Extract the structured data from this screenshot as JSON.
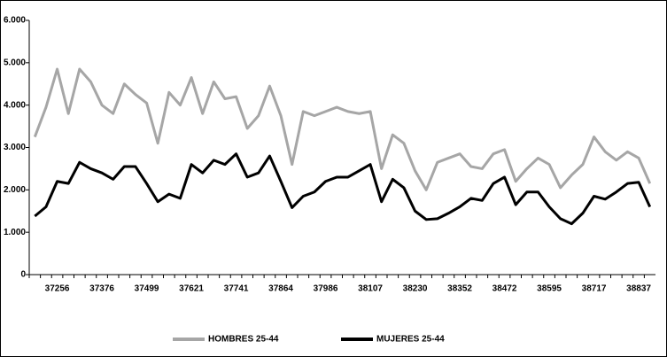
{
  "chart_data": {
    "type": "line",
    "categories": [
      null,
      null,
      37256,
      null,
      null,
      null,
      37376,
      null,
      null,
      null,
      37499,
      null,
      null,
      null,
      37621,
      null,
      null,
      null,
      37741,
      null,
      null,
      null,
      37864,
      null,
      null,
      null,
      37986,
      null,
      null,
      null,
      38107,
      null,
      null,
      null,
      38230,
      null,
      null,
      null,
      38352,
      null,
      null,
      null,
      38472,
      null,
      null,
      null,
      38595,
      null,
      null,
      null,
      38717,
      null,
      null,
      null,
      38837,
      null
    ],
    "series": [
      {
        "name": "HOMBRES 25-44",
        "color": "#a6a6a6",
        "values": [
          3250,
          3950,
          4850,
          3800,
          4850,
          4550,
          4000,
          3800,
          4500,
          4250,
          4050,
          3100,
          4300,
          4000,
          4650,
          3800,
          4550,
          4150,
          4200,
          3450,
          3750,
          4450,
          3750,
          2600,
          3850,
          3750,
          3850,
          3950,
          3850,
          3800,
          3850,
          2500,
          3300,
          3100,
          2450,
          2000,
          2650,
          2750,
          2850,
          2550,
          2500,
          2850,
          2950,
          2200,
          2500,
          2750,
          2600,
          2050,
          2350,
          2600,
          3250,
          2900,
          2700,
          2900,
          2750,
          2150
        ]
      },
      {
        "name": "MUJERES 25-44",
        "color": "#000000",
        "values": [
          1380,
          1600,
          2200,
          2150,
          2650,
          2500,
          2400,
          2250,
          2550,
          2550,
          2150,
          1720,
          1900,
          1800,
          2600,
          2400,
          2700,
          2600,
          2850,
          2300,
          2400,
          2800,
          2200,
          1580,
          1850,
          1950,
          2200,
          2300,
          2300,
          2450,
          2600,
          1720,
          2250,
          2050,
          1500,
          1300,
          1320,
          1450,
          1600,
          1800,
          1750,
          2150,
          2300,
          1650,
          1950,
          1950,
          1600,
          1320,
          1200,
          1450,
          1850,
          1780,
          1950,
          2150,
          2180,
          1600
        ]
      }
    ],
    "ylim": [
      0,
      6000
    ],
    "yticks": [
      0,
      {
        "value": 1000,
        "label": "1.000"
      },
      {
        "value": 2000,
        "label": "2.000"
      },
      {
        "value": 3000,
        "label": "3.000"
      },
      {
        "value": 4000,
        "label": "4.000"
      },
      {
        "value": 5000,
        "label": "5.000"
      },
      {
        "value": 6000,
        "label": "6.000"
      }
    ],
    "legend": "bottom"
  }
}
